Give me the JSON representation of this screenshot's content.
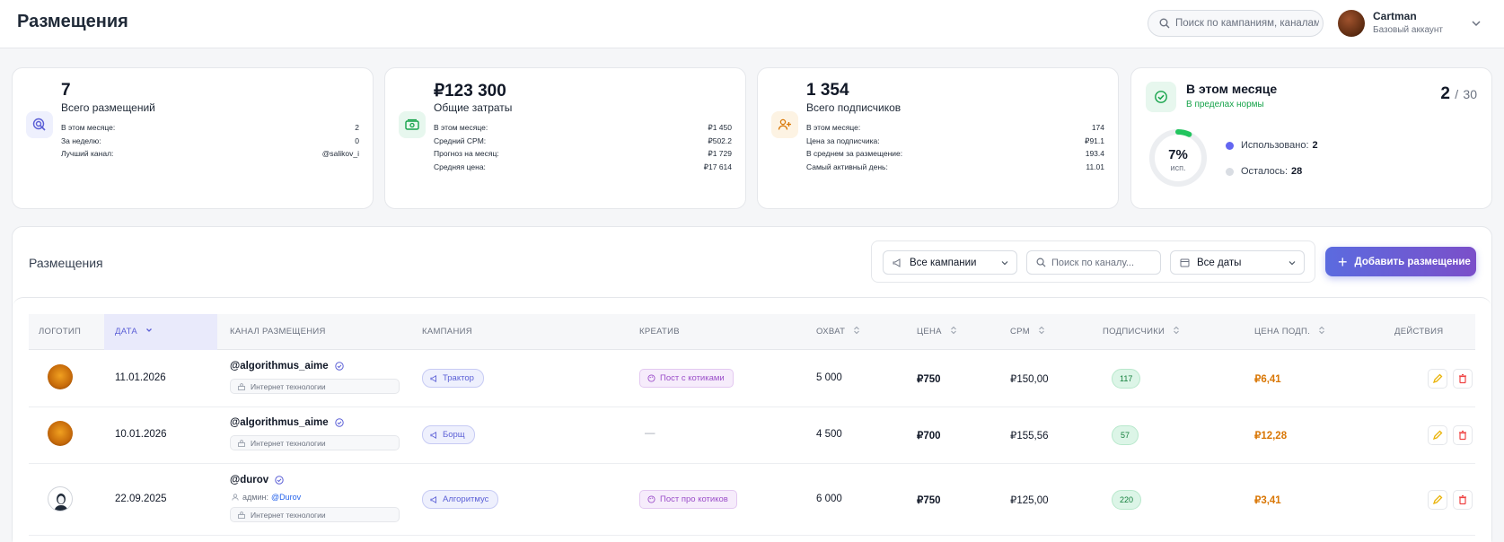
{
  "header": {
    "title": "Размещения",
    "search_placeholder": "Поиск по кампаниям, каналам...",
    "user": {
      "name": "Cartman",
      "plan": "Базовый аккаунт"
    }
  },
  "stats": {
    "placements": {
      "value": "7",
      "label": "Всего размещений",
      "rows": [
        {
          "k": "В этом месяце:",
          "v": "2"
        },
        {
          "k": "За неделю:",
          "v": "0"
        },
        {
          "k": "Лучший канал:",
          "v": "@salikov_i"
        }
      ]
    },
    "spend": {
      "value": "₽123 300",
      "label": "Общие затраты",
      "rows": [
        {
          "k": "В этом месяце:",
          "v": "₽1 450"
        },
        {
          "k": "Средний CPM:",
          "v": "₽502.2"
        },
        {
          "k": "Прогноз на месяц:",
          "v": "₽1 729"
        },
        {
          "k": "Средняя цена:",
          "v": "₽17 614"
        }
      ]
    },
    "subscribers": {
      "value": "1 354",
      "label": "Всего подписчиков",
      "rows": [
        {
          "k": "В этом месяце:",
          "v": "174"
        },
        {
          "k": "Цена за подписчика:",
          "v": "₽91.1"
        },
        {
          "k": "В среднем за размещение:",
          "v": "193.4"
        },
        {
          "k": "Самый активный день:",
          "v": "11.01"
        }
      ]
    },
    "month": {
      "title": "В этом месяце",
      "status": "В пределах нормы",
      "used": "2",
      "sep": "/",
      "total": "30",
      "percent_text": "7%",
      "percent_value": 7,
      "percent_label": "исп.",
      "used_label": "Использовано:",
      "left_label": "Осталось:",
      "left": "28",
      "colors": {
        "used": "#6366f1",
        "left": "#d1d5db",
        "ring": "#22c55e"
      }
    }
  },
  "placements": {
    "title": "Размещения",
    "filters": {
      "campaign": "Все кампании",
      "channel_placeholder": "Поиск по каналу...",
      "dates": "Все даты"
    },
    "add_button": "Добавить размещение",
    "columns": {
      "logo": "ЛОГОТИП",
      "date": "ДАТА",
      "channel": "КАНАЛ РАЗМЕЩЕНИЯ",
      "campaign": "КАМПАНИЯ",
      "creative": "КРЕАТИВ",
      "reach": "ОХВАТ",
      "price": "ЦЕНА",
      "cpm": "CPM",
      "subs": "ПОДПИСЧИКИ",
      "sub_price": "ЦЕНА ПОДП.",
      "actions": "ДЕЙСТВИЯ"
    },
    "rows": [
      {
        "date": "11.01.2026",
        "channel": "@algorithmus_aime",
        "topic": "Интернет технологии",
        "campaign": "Трактор",
        "creative": "Пост с котиками",
        "reach": "5 000",
        "price": "₽750",
        "cpm": "₽150,00",
        "subs": "117",
        "sub_price": "₽6,41"
      },
      {
        "date": "10.01.2026",
        "channel": "@algorithmus_aime",
        "topic": "Интернет технологии",
        "campaign": "Борщ",
        "creative": "—",
        "reach": "4 500",
        "price": "₽700",
        "cpm": "₽155,56",
        "subs": "57",
        "sub_price": "₽12,28"
      },
      {
        "date": "22.09.2025",
        "channel": "@durov",
        "admin_label": "админ:",
        "admin": "@Durov",
        "topic": "Интернет технологии",
        "campaign": "Алгоритмус",
        "creative": "Пост про котиков",
        "reach": "6 000",
        "price": "₽750",
        "cpm": "₽125,00",
        "subs": "220",
        "sub_price": "₽3,41"
      }
    ]
  }
}
